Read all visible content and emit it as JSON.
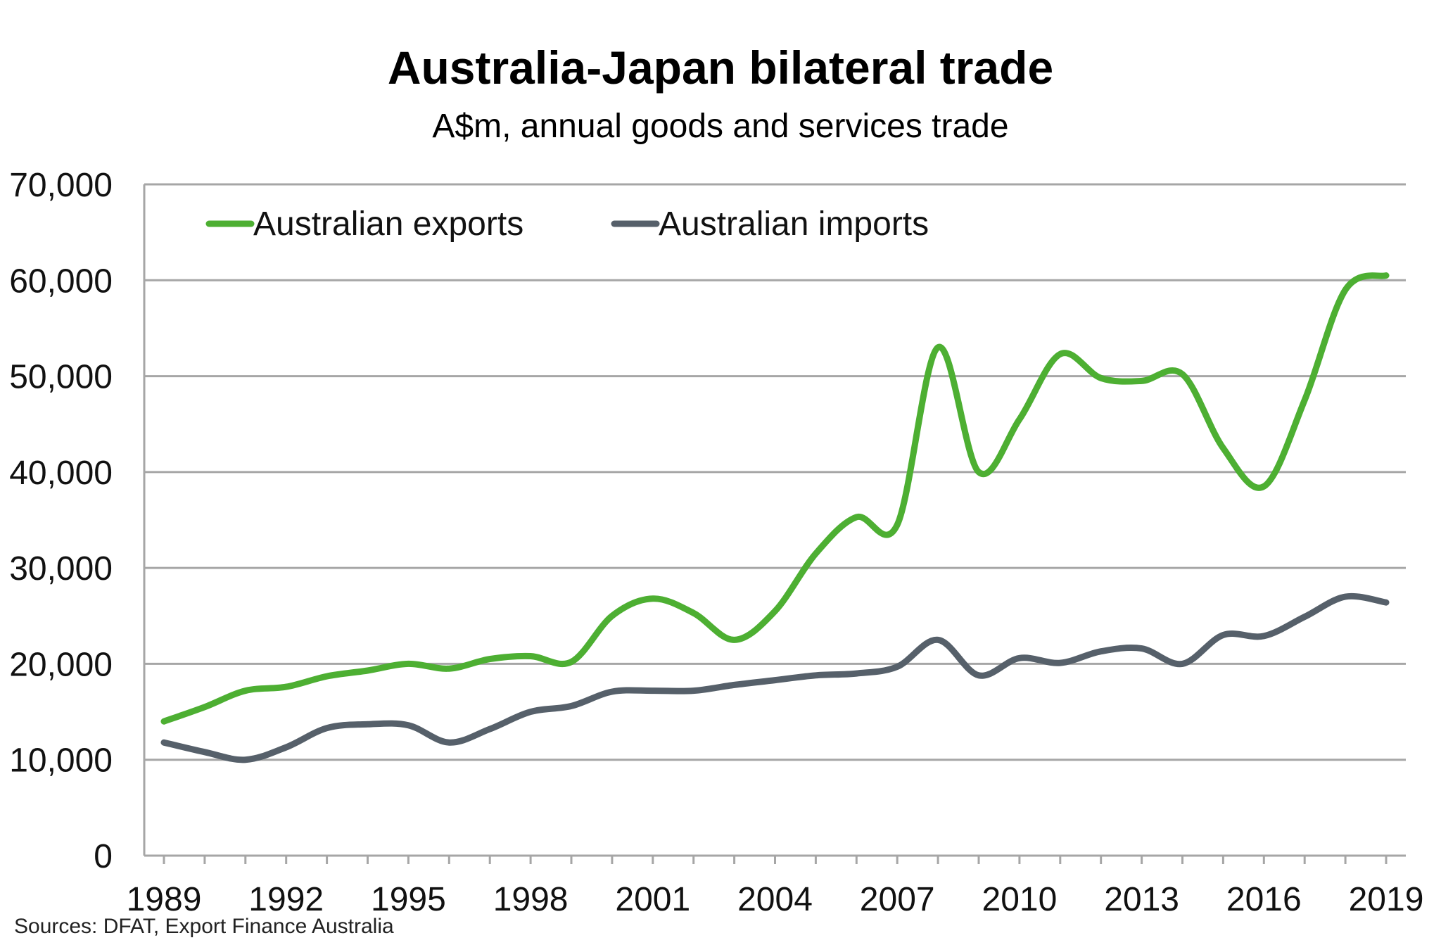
{
  "chart_data": {
    "type": "line",
    "title": "Australia-Japan bilateral trade",
    "subtitle": "A$m, annual goods and services trade",
    "source": "Sources: DFAT, Export Finance Australia",
    "xlabel": "",
    "ylabel": "",
    "ylim": [
      0,
      70000
    ],
    "y_ticks": [
      "0",
      "10,000",
      "20,000",
      "30,000",
      "40,000",
      "50,000",
      "60,000",
      "70,000"
    ],
    "x_range": [
      1989,
      2019
    ],
    "x_ticks": [
      "1989",
      "1992",
      "1995",
      "1998",
      "2001",
      "2004",
      "2007",
      "2010",
      "2013",
      "2016",
      "2019"
    ],
    "grid": true,
    "legend_position": "top-left",
    "x": [
      1989,
      1990,
      1991,
      1992,
      1993,
      1994,
      1995,
      1996,
      1997,
      1998,
      1999,
      2000,
      2001,
      2002,
      2003,
      2004,
      2005,
      2006,
      2007,
      2008,
      2009,
      2010,
      2011,
      2012,
      2013,
      2014,
      2015,
      2016,
      2017,
      2018,
      2019
    ],
    "series": [
      {
        "name": "Australian exports",
        "color": "#4daf32",
        "values": [
          14000,
          15500,
          17200,
          17600,
          18700,
          19300,
          20000,
          19500,
          20500,
          20800,
          20200,
          25000,
          26800,
          25300,
          22500,
          25500,
          31500,
          35300,
          34500,
          53000,
          40000,
          45500,
          52300,
          49800,
          49500,
          50200,
          42500,
          38500,
          47500,
          59000,
          60500
        ]
      },
      {
        "name": "Australian imports",
        "color": "#56606a",
        "values": [
          11800,
          10800,
          10000,
          11300,
          13300,
          13700,
          13600,
          11800,
          13200,
          15000,
          15600,
          17100,
          17200,
          17200,
          17800,
          18300,
          18800,
          19000,
          19700,
          22500,
          18800,
          20600,
          20100,
          21300,
          21600,
          20000,
          23000,
          22900,
          24900,
          27000,
          26400
        ]
      }
    ]
  }
}
